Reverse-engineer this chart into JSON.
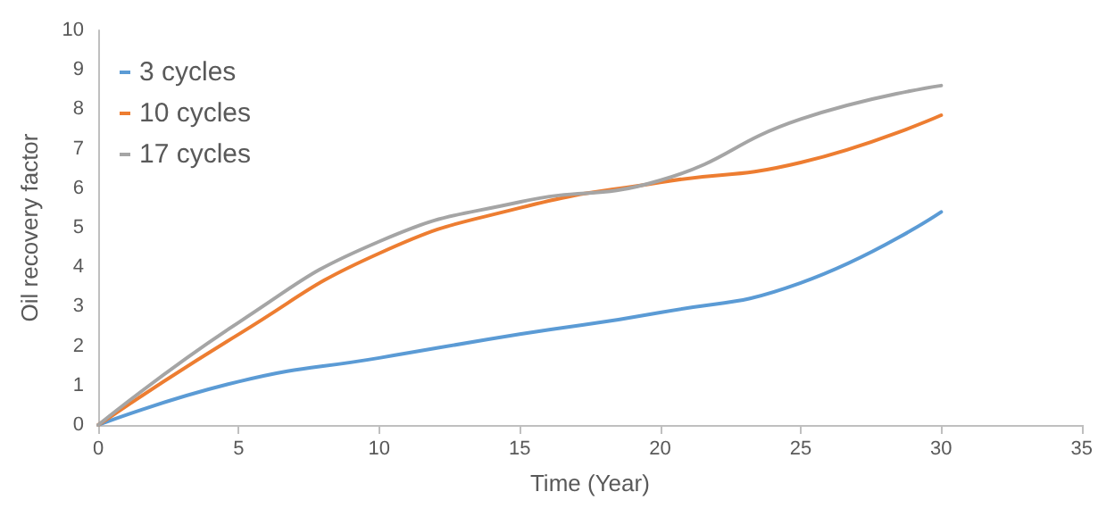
{
  "chart_data": {
    "type": "line",
    "xlabel": "Time (Year)",
    "ylabel": "Oil recovery factor",
    "x": [
      0,
      5,
      10,
      15,
      20,
      25,
      30
    ],
    "series": [
      {
        "name": "3 cycles",
        "color": "#5b9bd5",
        "values": [
          0,
          1.1,
          1.7,
          2.3,
          2.85,
          3.6,
          5.4
        ]
      },
      {
        "name": "10 cycles",
        "color": "#ed7d31",
        "values": [
          0,
          2.3,
          4.35,
          5.5,
          6.15,
          6.65,
          7.85
        ]
      },
      {
        "name": "17 cycles",
        "color": "#a5a5a5",
        "values": [
          0,
          2.6,
          4.65,
          5.65,
          6.2,
          7.75,
          8.6
        ]
      }
    ],
    "xlim": [
      0,
      35
    ],
    "xticks": [
      0,
      5,
      10,
      15,
      20,
      25,
      30,
      35
    ],
    "ylim": [
      0,
      10
    ],
    "yticks": [
      0,
      1,
      2,
      3,
      4,
      5,
      6,
      7,
      8,
      9,
      10
    ],
    "grid": false,
    "legend": "top left",
    "marker": "none",
    "line_style": "solid"
  }
}
